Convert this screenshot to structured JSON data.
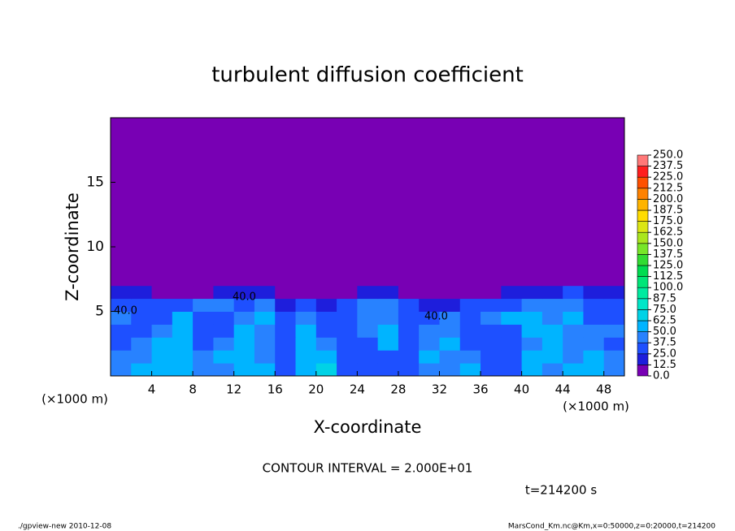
{
  "chart_data": {
    "type": "contour-fill",
    "title": "turbulent diffusion coefficient",
    "xlabel": "X-coordinate",
    "ylabel": "Z-coordinate",
    "x_unit_label": "(×1000 m)",
    "x_unit_label_2": "(×1000 m)",
    "contour_interval": "CONTOUR INTERVAL = 2.000E+01",
    "time_label": "t=214200 s",
    "footer_left": "./gpview-new  2010-12-08",
    "footer_right": "MarsCond_Km.nc@Km,x=0:50000,z=0:20000,t=214200",
    "annotations": [
      "40.0",
      "40.0",
      "40.0"
    ],
    "xlim": [
      0,
      50
    ],
    "ylim": [
      0,
      20
    ],
    "xticks": [
      4,
      8,
      12,
      16,
      20,
      24,
      28,
      32,
      36,
      40,
      44,
      48
    ],
    "yticks": [
      5,
      10,
      15
    ],
    "x_edges": [
      0,
      2,
      4,
      6,
      8,
      10,
      12,
      14,
      16,
      18,
      20,
      22,
      24,
      26,
      28,
      30,
      32,
      34,
      36,
      38,
      40,
      42,
      44,
      46,
      48,
      50
    ],
    "z_edges": [
      0,
      1,
      2,
      3,
      4,
      5,
      6,
      7,
      20
    ],
    "values": [
      [
        45,
        55,
        60,
        50,
        45,
        40,
        55,
        50,
        35,
        60,
        70,
        25,
        25,
        25,
        30,
        45,
        40,
        50,
        30,
        25,
        60,
        45,
        50,
        55,
        40
      ],
      [
        40,
        45,
        50,
        55,
        45,
        50,
        60,
        45,
        30,
        55,
        60,
        25,
        25,
        30,
        35,
        50,
        45,
        45,
        25,
        25,
        50,
        50,
        45,
        50,
        40
      ],
      [
        35,
        40,
        60,
        50,
        30,
        45,
        55,
        40,
        35,
        50,
        45,
        25,
        30,
        50,
        30,
        45,
        50,
        30,
        25,
        30,
        45,
        55,
        40,
        45,
        35
      ],
      [
        35,
        30,
        45,
        55,
        25,
        30,
        50,
        45,
        30,
        50,
        35,
        30,
        40,
        55,
        25,
        40,
        45,
        35,
        30,
        35,
        50,
        50,
        45,
        40,
        40
      ],
      [
        40,
        25,
        30,
        60,
        35,
        25,
        40,
        55,
        30,
        45,
        30,
        35,
        45,
        45,
        30,
        30,
        40,
        25,
        45,
        50,
        55,
        45,
        50,
        35,
        35
      ],
      [
        30,
        25,
        25,
        35,
        45,
        40,
        35,
        40,
        20,
        30,
        20,
        30,
        40,
        40,
        25,
        20,
        20,
        25,
        30,
        35,
        40,
        40,
        45,
        35,
        30
      ],
      [
        20,
        15,
        5,
        5,
        10,
        15,
        20,
        15,
        5,
        10,
        5,
        10,
        20,
        20,
        10,
        5,
        5,
        5,
        10,
        15,
        20,
        20,
        25,
        20,
        20
      ],
      [
        2,
        2,
        2,
        2,
        2,
        2,
        2,
        2,
        2,
        2,
        2,
        2,
        2,
        2,
        2,
        2,
        2,
        2,
        2,
        2,
        2,
        2,
        2,
        2,
        2
      ]
    ],
    "colorbar": {
      "levels": [
        {
          "value": 0,
          "label": "0.0"
        },
        {
          "value": 12.5,
          "label": "12.5"
        },
        {
          "value": 25,
          "label": "25.0"
        },
        {
          "value": 37.5,
          "label": "37.5"
        },
        {
          "value": 50,
          "label": "50.0"
        },
        {
          "value": 62.5,
          "label": "62.5"
        },
        {
          "value": 75,
          "label": "75.0"
        },
        {
          "value": 87.5,
          "label": "87.5"
        },
        {
          "value": 100,
          "label": "100.0"
        },
        {
          "value": 112.5,
          "label": "112.5"
        },
        {
          "value": 125,
          "label": "125.0"
        },
        {
          "value": 137.5,
          "label": "137.5"
        },
        {
          "value": 150,
          "label": "150.0"
        },
        {
          "value": 162.5,
          "label": "162.5"
        },
        {
          "value": 175,
          "label": "175.0"
        },
        {
          "value": 187.5,
          "label": "187.5"
        },
        {
          "value": 200,
          "label": "200.0"
        },
        {
          "value": 212.5,
          "label": "212.5"
        },
        {
          "value": 225,
          "label": "225.0"
        },
        {
          "value": 237.5,
          "label": "237.5"
        },
        {
          "value": 250,
          "label": "250.0"
        }
      ],
      "colors": [
        "#7800b4",
        "#1e1edc",
        "#1e50ff",
        "#2882ff",
        "#00b4ff",
        "#00d2e6",
        "#00e6c8",
        "#00eba0",
        "#00e678",
        "#00dc50",
        "#32dc32",
        "#78e628",
        "#aae61e",
        "#dce614",
        "#ffdc00",
        "#ffb400",
        "#ff8200",
        "#ff5000",
        "#ff1e1e",
        "#ff7878"
      ]
    }
  }
}
